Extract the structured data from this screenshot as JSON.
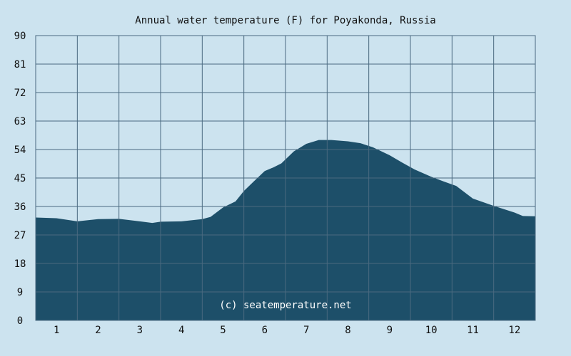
{
  "chart_data": {
    "type": "area",
    "title": "Annual water temperature (F) for Poyakonda, Russia",
    "xlabel": "",
    "ylabel": "",
    "x_ticks": [
      "1",
      "2",
      "3",
      "4",
      "5",
      "6",
      "7",
      "8",
      "9",
      "10",
      "11",
      "12"
    ],
    "y_ticks": [
      "0",
      "9",
      "18",
      "27",
      "36",
      "45",
      "54",
      "63",
      "72",
      "81",
      "90"
    ],
    "ylim": [
      0,
      90
    ],
    "xlim": [
      0.5,
      12.5
    ],
    "grid": true,
    "series": [
      {
        "x": [
          0.5,
          1.0,
          1.5,
          2.0,
          2.5,
          3.0,
          3.3,
          3.5,
          4.0,
          4.5,
          4.7,
          5.0,
          5.3,
          5.5,
          5.8,
          6.0,
          6.2,
          6.4,
          6.7,
          7.0,
          7.3,
          7.6,
          8.0,
          8.3,
          8.6,
          9.0,
          9.3,
          9.6,
          10.0,
          10.3,
          10.6,
          11.0,
          11.5,
          12.0,
          12.2,
          12.5
        ],
        "values": [
          32.5,
          32.3,
          31.3,
          32.0,
          32.1,
          31.3,
          30.8,
          31.2,
          31.3,
          32.0,
          32.7,
          35.7,
          37.6,
          40.9,
          44.7,
          47.2,
          48.3,
          49.6,
          53.4,
          55.8,
          57.0,
          57.0,
          56.6,
          56.0,
          54.7,
          52.2,
          49.9,
          47.7,
          45.4,
          43.9,
          42.5,
          38.5,
          36.2,
          34.1,
          33.0,
          32.9
        ]
      }
    ],
    "credit": "(c) seatemperature.net",
    "colors": {
      "background": "#cce3ef",
      "area": "#1d4f69",
      "grid": "#4a6a80"
    }
  }
}
